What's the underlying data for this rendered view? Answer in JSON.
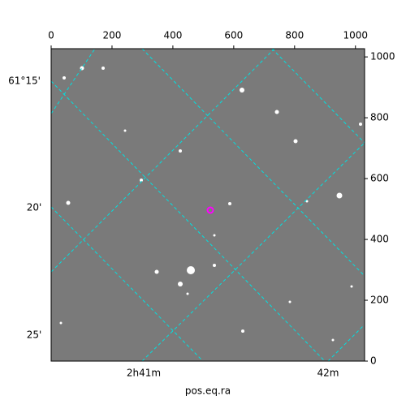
{
  "chart_data": {
    "type": "image",
    "xlabel": "pos.eq.ra",
    "xlim": [
      0,
      1030
    ],
    "ylim": [
      0,
      1027
    ],
    "xticks": [
      0,
      200,
      400,
      600,
      800,
      1000
    ],
    "yticks": [
      0,
      200,
      400,
      600,
      800,
      1000
    ],
    "dec_labels": [
      "61°15'",
      "20'",
      "25'"
    ],
    "ra_labels": [
      "2h41m",
      "42m"
    ]
  }
}
